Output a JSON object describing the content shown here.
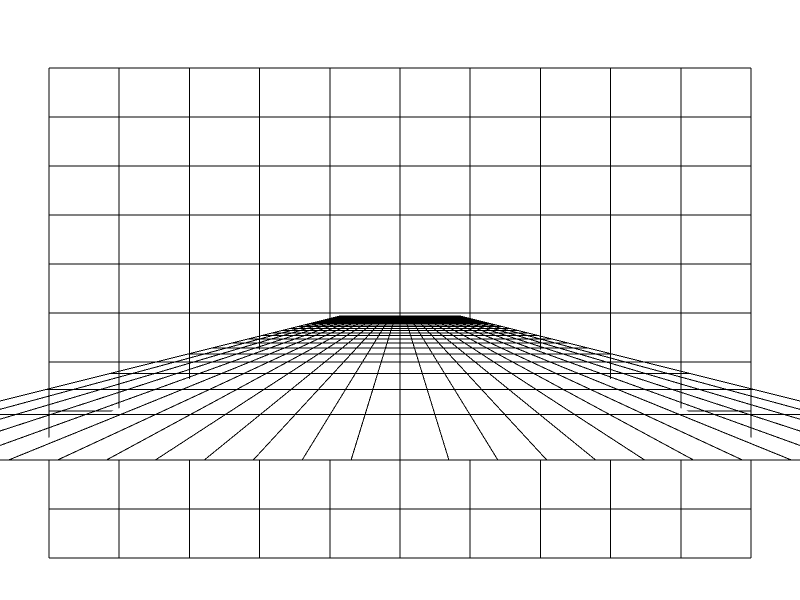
{
  "scene": {
    "background_color": "#ffffff",
    "line_color": "#000000",
    "wall_grid": {
      "columns": 10,
      "rows": 10
    },
    "floor_grid": {
      "radial_lines": 27,
      "depth_lines": 25
    }
  }
}
